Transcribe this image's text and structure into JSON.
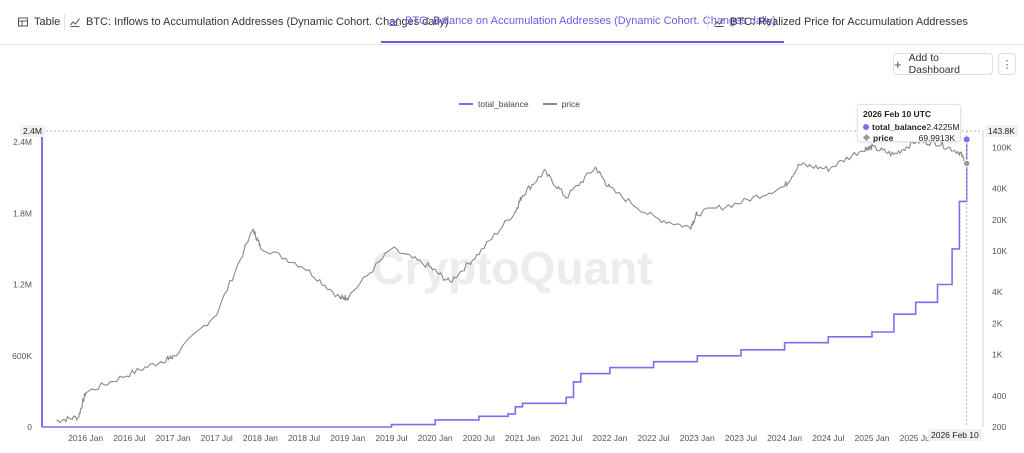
{
  "tabs": [
    {
      "label": "Table",
      "icon": "table-icon"
    },
    {
      "label": "BTC: Inflows to Accumulation Addresses (Dynamic Cohort. Changes daily)",
      "icon": "chart-icon"
    },
    {
      "label": "BTC: Balance on Accumulation Addresses (Dynamic Cohort. Changes daily)",
      "icon": "chart-icon",
      "active": true
    },
    {
      "label": "BTC: Realized Price for Accumulation Addresses",
      "icon": "chart-icon"
    }
  ],
  "toolbar": {
    "add_to_dashboard": "Add to Dashboard",
    "more": "⋮"
  },
  "watermark": "CryptoQuant",
  "colors": {
    "accent": "#6b5ce7",
    "total_balance": "#7b6ef0",
    "price": "#8a8a8a"
  },
  "tooltip": {
    "date": "2026 Feb 10 UTC",
    "rows": [
      {
        "name": "total_balance",
        "value": "2.4225M"
      },
      {
        "name": "price",
        "value": "69.9913K"
      }
    ]
  },
  "flags": {
    "left_value": "2.4M",
    "right_value": "143.8K",
    "x_value": "2026 Feb 10"
  },
  "chart_data": {
    "type": "line",
    "legend_position": "top-center",
    "grid": false,
    "series": [
      {
        "name": "total_balance",
        "axis": "left",
        "x": [
          "2015 Jul",
          "2016 Jan",
          "2016 Jul",
          "2017 Jan",
          "2017 Jul",
          "2018 Jan",
          "2018 Jul",
          "2019 Jan",
          "2019 Jul",
          "2020 Jan",
          "2020 Jul",
          "2020 Nov",
          "2020 Dec",
          "2021 Jan",
          "2021 Jul",
          "2021 Aug",
          "2021 Sep",
          "2022 Jan",
          "2022 Jul",
          "2023 Jan",
          "2023 Jul",
          "2024 Jan",
          "2024 Jul",
          "2025 Jan",
          "2025 Apr",
          "2025 Jul",
          "2025 Oct",
          "2025 Dec",
          "2026 Jan",
          "2026 Feb"
        ],
        "values": [
          0,
          0,
          0,
          0,
          0,
          0,
          0,
          0,
          0.02,
          0.06,
          0.09,
          0.11,
          0.17,
          0.2,
          0.25,
          0.38,
          0.45,
          0.5,
          0.55,
          0.6,
          0.65,
          0.71,
          0.76,
          0.8,
          0.95,
          1.05,
          1.2,
          1.5,
          1.9,
          2.4225
        ]
      },
      {
        "name": "price",
        "axis": "right",
        "scale": "log",
        "x": [
          "2015 Sep",
          "2015 Dec",
          "2016 Jan",
          "2016 Jul",
          "2016 Dec",
          "2017 Jan",
          "2017 Jul",
          "2017 Dec",
          "2018 Jan",
          "2018 Jul",
          "2018 Dec",
          "2019 Jan",
          "2019 Jul",
          "2019 Dec",
          "2020 Mar",
          "2020 Jul",
          "2020 Dec",
          "2021 Jan",
          "2021 Apr",
          "2021 Jul",
          "2021 Nov",
          "2022 Jan",
          "2022 Jul",
          "2022 Dec",
          "2023 Jan",
          "2023 Jul",
          "2024 Jan",
          "2024 Mar",
          "2024 Jul",
          "2024 Dec",
          "2025 Jan",
          "2025 Apr",
          "2025 Jul",
          "2025 Oct",
          "2026 Jan",
          "2026 Feb"
        ],
        "values": [
          230,
          250,
          430,
          650,
          900,
          950,
          2500,
          16000,
          11000,
          7000,
          3500,
          3600,
          10500,
          7200,
          5000,
          9500,
          24000,
          35000,
          58000,
          33000,
          64000,
          40000,
          21000,
          16800,
          23000,
          29500,
          42000,
          68000,
          62000,
          98000,
          100000,
          85000,
          115000,
          110000,
          90000,
          69991.3
        ]
      }
    ],
    "x_ticks": [
      "2016 Jan",
      "2016 Jul",
      "2017 Jan",
      "2017 Jul",
      "2018 Jan",
      "2018 Jul",
      "2019 Jan",
      "2019 Jul",
      "2020 Jan",
      "2020 Jul",
      "2021 Jan",
      "2021 Jul",
      "2022 Jan",
      "2022 Jul",
      "2023 Jan",
      "2023 Jul",
      "2024 Jan",
      "2024 Jul",
      "2025 Jan",
      "2025 Jul"
    ],
    "y_left_ticks": [
      "0",
      "600K",
      "1.2M",
      "1.8M",
      "2.4M"
    ],
    "y_left_range": [
      0,
      2400000
    ],
    "y_right_ticks": [
      "200",
      "400",
      "1K",
      "2K",
      "4K",
      "10K",
      "20K",
      "40K",
      "100K"
    ],
    "y_right_range": [
      200,
      143800
    ]
  }
}
